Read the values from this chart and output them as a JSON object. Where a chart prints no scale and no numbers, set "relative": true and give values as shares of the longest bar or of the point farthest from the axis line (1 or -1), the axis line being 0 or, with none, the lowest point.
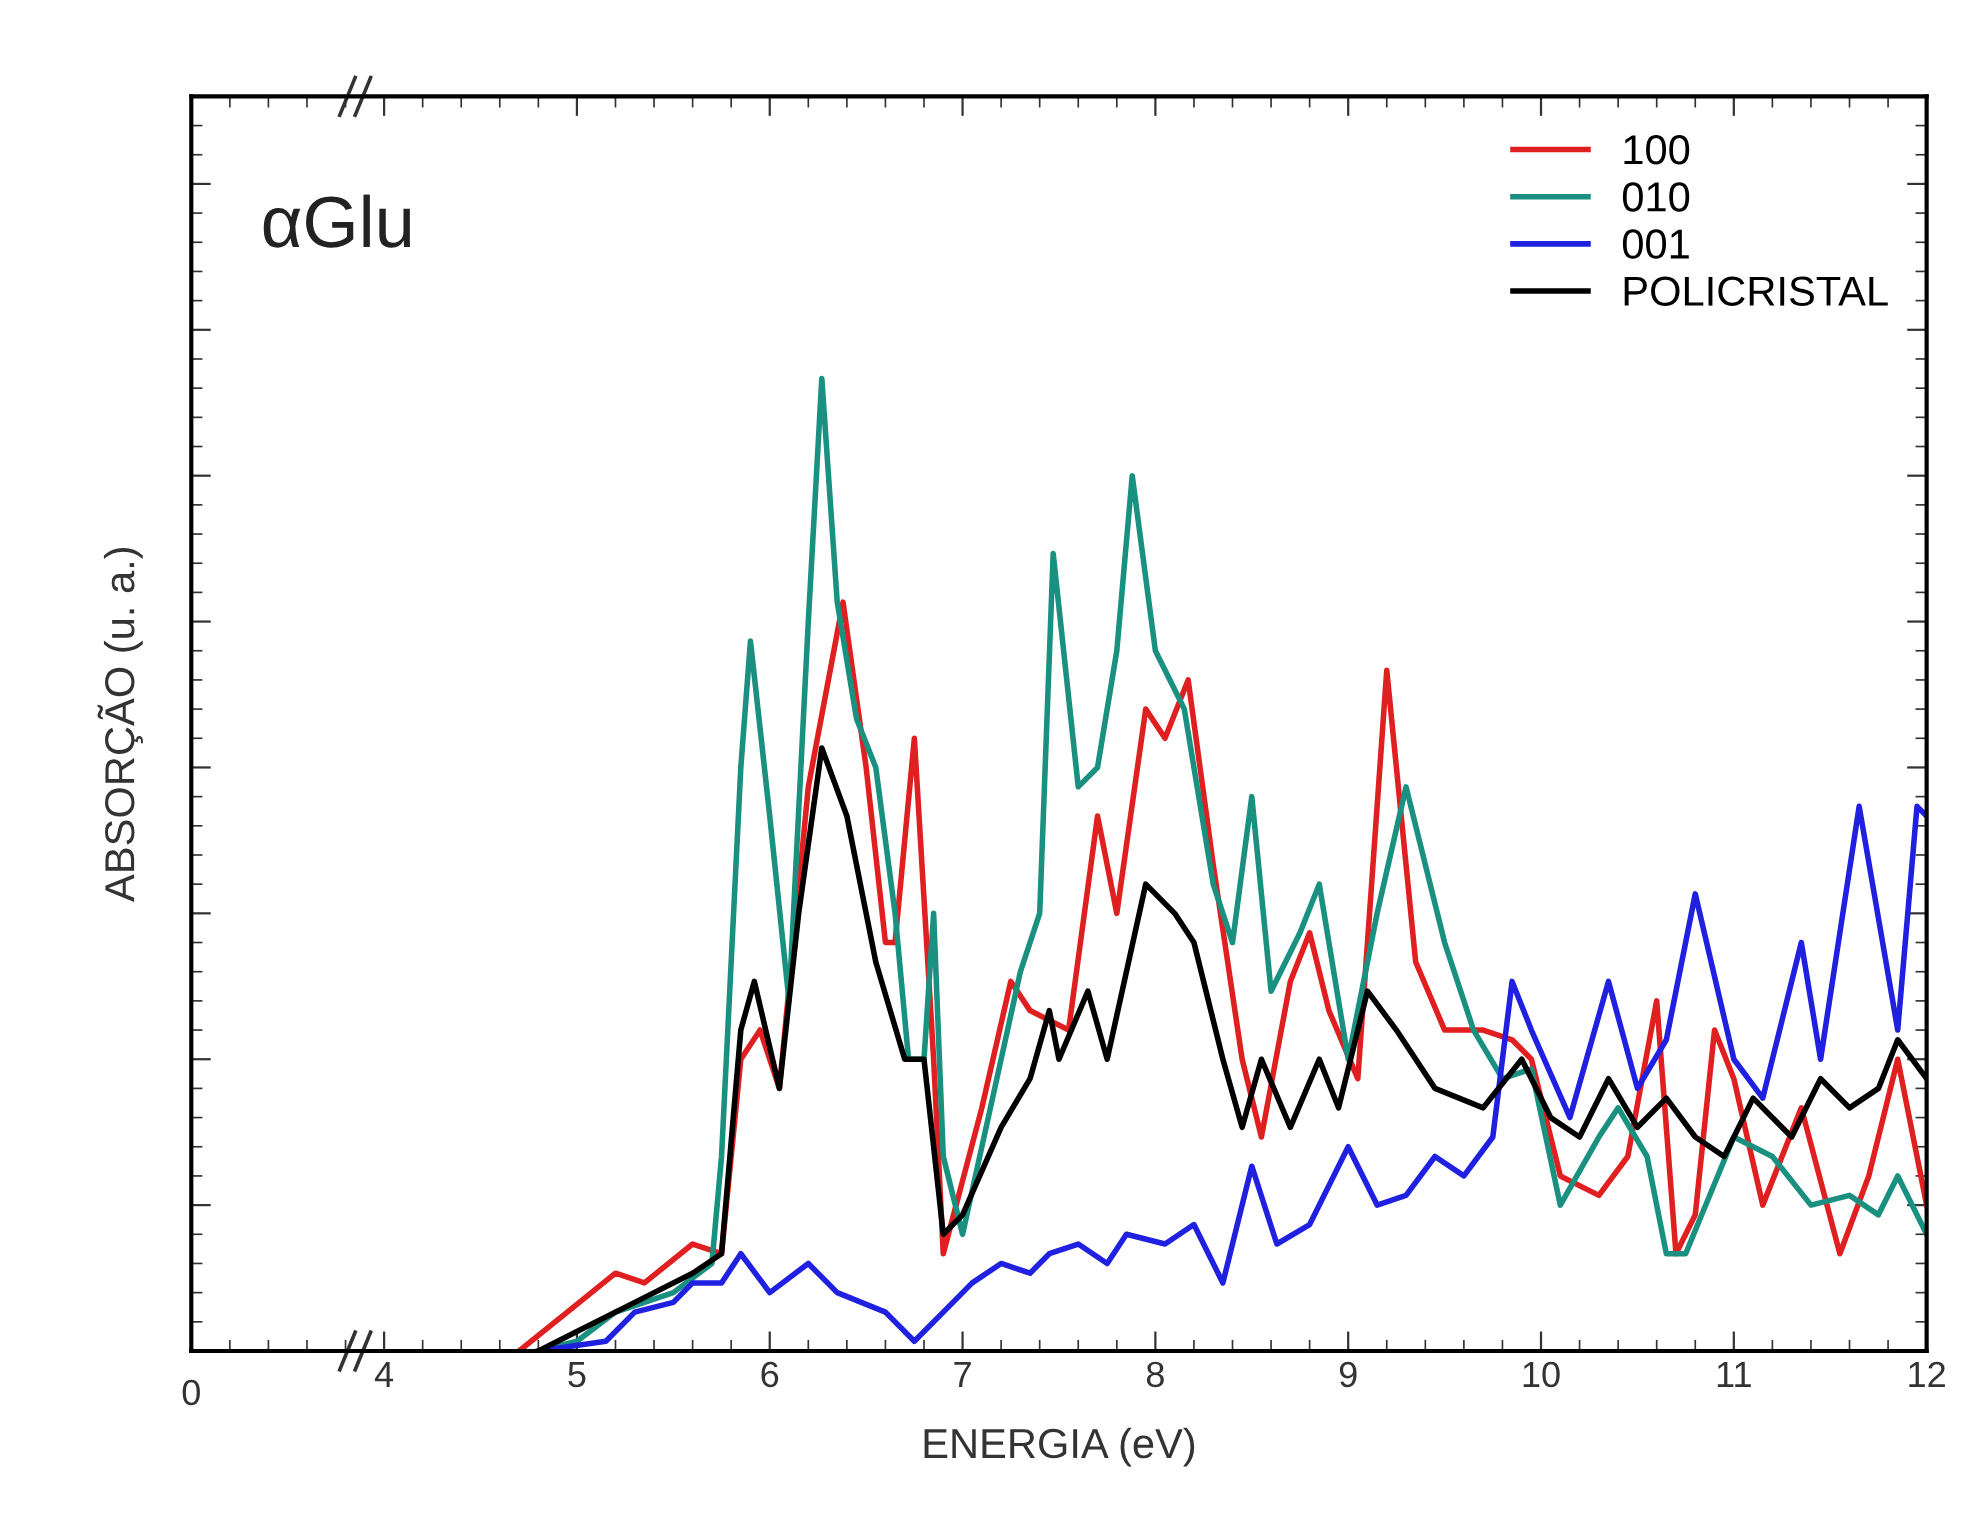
{
  "chart_data": {
    "type": "line",
    "xlabel": "ENERGIA (eV)",
    "ylabel": "ABSORÇÃO (u. a.)",
    "relative": true,
    "tick_labels": "x",
    "legend": "top right",
    "grid": false,
    "annotations": [
      "αGlu",
      "0"
    ],
    "xlim": [
      3,
      12
    ],
    "xticks": [
      4,
      5,
      6,
      7,
      8,
      9,
      10,
      11,
      12
    ],
    "series": [
      {
        "name": "100",
        "color": "#e02020",
        "x": [
          4.7,
          4.95,
          5.2,
          5.35,
          5.6,
          5.75,
          5.85,
          5.95,
          6.05,
          6.2,
          6.38,
          6.5,
          6.6,
          6.65,
          6.75,
          6.85,
          6.9,
          7.1,
          7.25,
          7.35,
          7.55,
          7.7,
          7.8,
          7.95,
          8.05,
          8.17,
          8.3,
          8.45,
          8.55,
          8.7,
          8.8,
          8.9,
          9.05,
          9.2,
          9.35,
          9.5,
          9.7,
          9.85,
          9.95,
          10.1,
          10.3,
          10.45,
          10.6,
          10.7,
          10.8,
          10.9,
          11.0,
          11.15,
          11.35,
          11.55,
          11.7,
          11.85,
          12.0
        ],
        "values": [
          0,
          0.04,
          0.08,
          0.07,
          0.11,
          0.1,
          0.3,
          0.33,
          0.27,
          0.58,
          0.77,
          0.6,
          0.42,
          0.42,
          0.63,
          0.3,
          0.1,
          0.25,
          0.38,
          0.35,
          0.33,
          0.55,
          0.45,
          0.66,
          0.63,
          0.69,
          0.5,
          0.3,
          0.22,
          0.38,
          0.43,
          0.35,
          0.28,
          0.7,
          0.4,
          0.33,
          0.33,
          0.32,
          0.3,
          0.18,
          0.16,
          0.2,
          0.36,
          0.1,
          0.14,
          0.33,
          0.28,
          0.15,
          0.25,
          0.1,
          0.18,
          0.3,
          0.15
        ]
      },
      {
        "name": "010",
        "color": "#1a9080",
        "x": [
          4.8,
          5.0,
          5.2,
          5.5,
          5.7,
          5.75,
          5.85,
          5.9,
          6.0,
          6.1,
          6.2,
          6.27,
          6.35,
          6.45,
          6.55,
          6.65,
          6.72,
          6.8,
          6.85,
          6.9,
          7.0,
          7.2,
          7.3,
          7.4,
          7.47,
          7.6,
          7.7,
          7.8,
          7.88,
          8.0,
          8.15,
          8.3,
          8.4,
          8.5,
          8.6,
          8.75,
          8.85,
          9.0,
          9.15,
          9.3,
          9.5,
          9.65,
          9.8,
          9.95,
          10.1,
          10.3,
          10.4,
          10.55,
          10.65,
          10.75,
          11.0,
          11.2,
          11.4,
          11.6,
          11.75,
          11.85,
          12.0
        ],
        "values": [
          0,
          0.01,
          0.04,
          0.06,
          0.09,
          0.2,
          0.6,
          0.73,
          0.55,
          0.36,
          0.75,
          1,
          0.77,
          0.65,
          0.6,
          0.45,
          0.3,
          0.3,
          0.45,
          0.2,
          0.12,
          0.3,
          0.39,
          0.45,
          0.82,
          0.58,
          0.6,
          0.72,
          0.9,
          0.72,
          0.66,
          0.48,
          0.42,
          0.57,
          0.37,
          0.43,
          0.48,
          0.3,
          0.45,
          0.58,
          0.42,
          0.33,
          0.28,
          0.29,
          0.15,
          0.22,
          0.25,
          0.2,
          0.1,
          0.1,
          0.22,
          0.2,
          0.15,
          0.16,
          0.14,
          0.18,
          0.12
        ]
      },
      {
        "name": "001",
        "color": "#2020e0",
        "x": [
          4.8,
          5.15,
          5.3,
          5.5,
          5.6,
          5.75,
          5.85,
          6.0,
          6.2,
          6.35,
          6.6,
          6.75,
          6.9,
          7.05,
          7.2,
          7.35,
          7.45,
          7.6,
          7.75,
          7.85,
          8.05,
          8.2,
          8.35,
          8.5,
          8.63,
          8.8,
          9.0,
          9.15,
          9.3,
          9.45,
          9.6,
          9.75,
          9.85,
          9.95,
          10.15,
          10.35,
          10.5,
          10.65,
          10.8,
          11.0,
          11.15,
          11.35,
          11.45,
          11.65,
          11.85,
          11.95,
          12.0
        ],
        "values": [
          0,
          0.01,
          0.04,
          0.05,
          0.07,
          0.07,
          0.1,
          0.06,
          0.09,
          0.06,
          0.04,
          0.01,
          0.04,
          0.07,
          0.09,
          0.08,
          0.1,
          0.11,
          0.09,
          0.12,
          0.11,
          0.13,
          0.07,
          0.19,
          0.11,
          0.13,
          0.21,
          0.15,
          0.16,
          0.2,
          0.18,
          0.22,
          0.38,
          0.33,
          0.24,
          0.38,
          0.27,
          0.32,
          0.47,
          0.3,
          0.26,
          0.42,
          0.3,
          0.56,
          0.33,
          0.56,
          0.55
        ]
      },
      {
        "name": "POLICRISTAL",
        "color": "#000000",
        "x": [
          4.8,
          5.0,
          5.3,
          5.6,
          5.75,
          5.85,
          5.92,
          6.05,
          6.15,
          6.27,
          6.4,
          6.55,
          6.7,
          6.8,
          6.9,
          7.0,
          7.2,
          7.35,
          7.45,
          7.5,
          7.65,
          7.75,
          7.95,
          8.1,
          8.2,
          8.35,
          8.45,
          8.55,
          8.7,
          8.85,
          8.95,
          9.1,
          9.25,
          9.45,
          9.7,
          9.9,
          10.05,
          10.2,
          10.35,
          10.5,
          10.65,
          10.8,
          10.95,
          11.1,
          11.3,
          11.45,
          11.6,
          11.75,
          11.85,
          12.0
        ],
        "values": [
          0,
          0.02,
          0.05,
          0.08,
          0.1,
          0.33,
          0.38,
          0.27,
          0.45,
          0.62,
          0.55,
          0.4,
          0.3,
          0.3,
          0.12,
          0.14,
          0.23,
          0.28,
          0.35,
          0.3,
          0.37,
          0.3,
          0.48,
          0.45,
          0.42,
          0.3,
          0.23,
          0.3,
          0.23,
          0.3,
          0.25,
          0.37,
          0.33,
          0.27,
          0.25,
          0.3,
          0.24,
          0.22,
          0.28,
          0.23,
          0.26,
          0.22,
          0.2,
          0.26,
          0.22,
          0.28,
          0.25,
          0.27,
          0.32,
          0.28
        ]
      }
    ]
  }
}
